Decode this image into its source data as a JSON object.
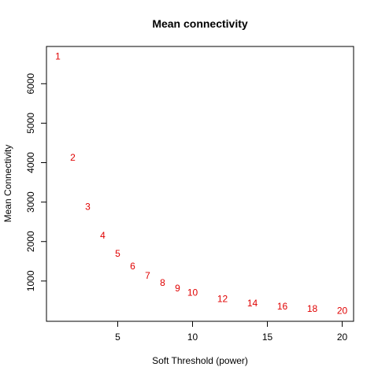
{
  "chart_data": {
    "type": "scatter",
    "title": "Mean connectivity",
    "xlabel": "Soft Threshold (power)",
    "ylabel": "Mean Connectivity",
    "xlim": [
      0.24,
      20.76
    ],
    "ylim": [
      -21,
      6944
    ],
    "x_ticks": [
      5,
      10,
      15,
      20
    ],
    "y_ticks": [
      1000,
      2000,
      3000,
      4000,
      5000,
      6000
    ],
    "grid": false,
    "legend": "none",
    "point_color": "#e00000",
    "points": [
      {
        "x": 1,
        "y": 6690,
        "label": "1"
      },
      {
        "x": 2,
        "y": 4130,
        "label": "2"
      },
      {
        "x": 3,
        "y": 2880,
        "label": "3"
      },
      {
        "x": 4,
        "y": 2150,
        "label": "4"
      },
      {
        "x": 5,
        "y": 1700,
        "label": "5"
      },
      {
        "x": 6,
        "y": 1380,
        "label": "6"
      },
      {
        "x": 7,
        "y": 1140,
        "label": "7"
      },
      {
        "x": 8,
        "y": 960,
        "label": "8"
      },
      {
        "x": 9,
        "y": 820,
        "label": "9"
      },
      {
        "x": 10,
        "y": 710,
        "label": "10"
      },
      {
        "x": 12,
        "y": 550,
        "label": "12"
      },
      {
        "x": 14,
        "y": 440,
        "label": "14"
      },
      {
        "x": 16,
        "y": 360,
        "label": "16"
      },
      {
        "x": 18,
        "y": 300,
        "label": "18"
      },
      {
        "x": 20,
        "y": 250,
        "label": "20"
      }
    ]
  }
}
